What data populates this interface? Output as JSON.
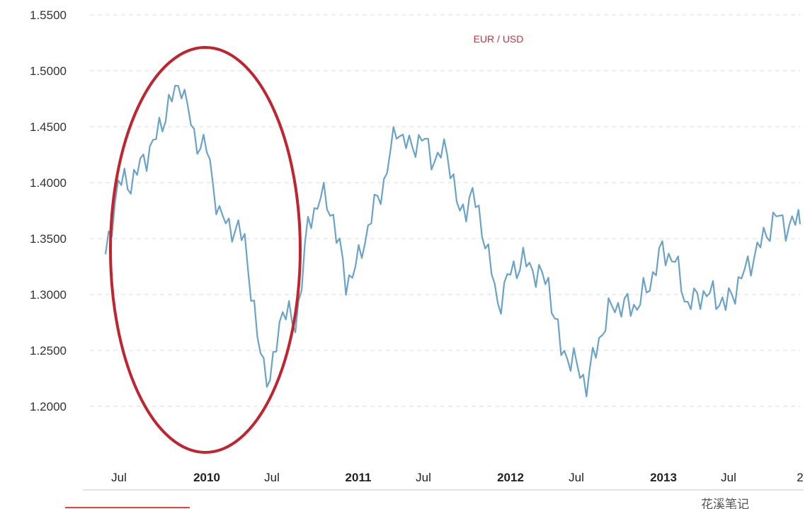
{
  "chart_data": {
    "type": "line",
    "series": [
      {
        "name": "EUR / USD",
        "x": [
          "2009-05",
          "2009-06",
          "2009-07",
          "2009-08",
          "2009-09",
          "2009-10",
          "2009-11",
          "2009-12",
          "2010-01",
          "2010-02",
          "2010-03",
          "2010-04",
          "2010-05",
          "2010-06",
          "2010-07",
          "2010-08",
          "2010-09",
          "2010-10",
          "2010-11",
          "2010-12",
          "2011-01",
          "2011-02",
          "2011-03",
          "2011-04",
          "2011-05",
          "2011-06",
          "2011-07",
          "2011-08",
          "2011-09",
          "2011-10",
          "2011-11",
          "2011-12",
          "2012-01",
          "2012-02",
          "2012-03",
          "2012-04",
          "2012-05",
          "2012-06",
          "2012-07",
          "2012-08",
          "2012-09",
          "2012-10",
          "2012-11",
          "2012-12",
          "2013-01",
          "2013-02",
          "2013-03",
          "2013-04",
          "2013-05",
          "2013-06",
          "2013-07",
          "2013-08",
          "2013-09",
          "2013-10",
          "2013-11",
          "2013-12"
        ],
        "values": [
          1.33,
          1.4,
          1.4,
          1.42,
          1.44,
          1.47,
          1.49,
          1.44,
          1.43,
          1.37,
          1.36,
          1.35,
          1.26,
          1.22,
          1.29,
          1.27,
          1.36,
          1.39,
          1.37,
          1.31,
          1.33,
          1.37,
          1.4,
          1.45,
          1.43,
          1.44,
          1.42,
          1.43,
          1.37,
          1.39,
          1.35,
          1.29,
          1.32,
          1.33,
          1.32,
          1.31,
          1.25,
          1.24,
          1.22,
          1.26,
          1.29,
          1.29,
          1.29,
          1.31,
          1.34,
          1.33,
          1.29,
          1.3,
          1.3,
          1.29,
          1.31,
          1.33,
          1.35,
          1.37,
          1.36,
          1.37
        ]
      }
    ],
    "yticks": [
      "1.5500",
      "1.5000",
      "1.4500",
      "1.4000",
      "1.3500",
      "1.3000",
      "1.2500",
      "1.2000"
    ],
    "xticks": [
      "Jul",
      "2010",
      "Jul",
      "2011",
      "Jul",
      "2012",
      "Jul",
      "2013",
      "Jul",
      "2"
    ],
    "ylim": [
      1.15,
      1.55
    ],
    "grid": true,
    "legend": "top-center",
    "annotation": "red ellipse highlighting the 2009–2010 segment",
    "colors": {
      "line": "#6aa3c8",
      "grid": "#dddddd",
      "label": "#c8323c",
      "ellipse": "#c0242e"
    }
  },
  "watermark": "花溪笔记"
}
